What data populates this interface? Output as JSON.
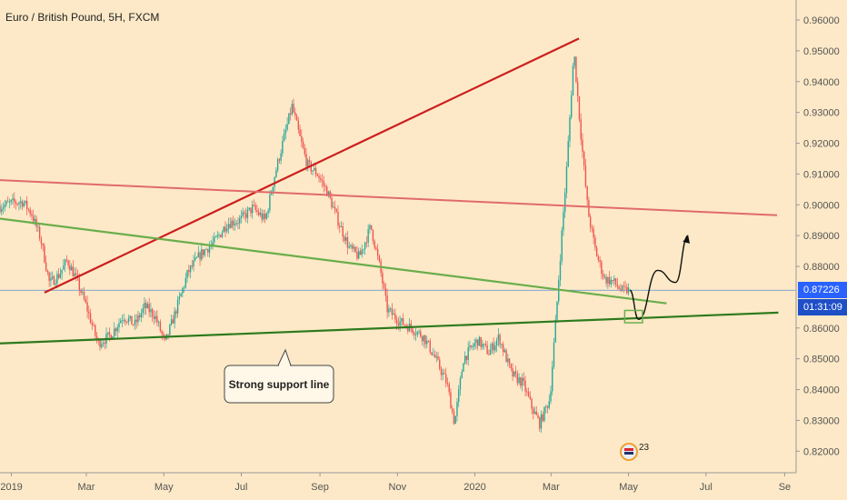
{
  "header": {
    "symbol": "Euro / British Pound, 5H, FXCM"
  },
  "price_axis": {
    "ticks": [
      "0.96000",
      "0.95000",
      "0.94000",
      "0.93000",
      "0.92000",
      "0.91000",
      "0.90000",
      "0.89000",
      "0.88000",
      "0.86000",
      "0.85000",
      "0.84000",
      "0.83000",
      "0.82000"
    ],
    "current_price": "0.87226",
    "countdown": "01:31:09",
    "price_tag_color": "#2962ff",
    "countdown_tag_color": "#1e4fc7"
  },
  "time_axis": {
    "ticks": [
      "2019",
      "Mar",
      "May",
      "Jul",
      "Sep",
      "Nov",
      "2020",
      "Mar",
      "May",
      "Jul",
      "Se"
    ]
  },
  "annotation": {
    "text": "Strong support line"
  },
  "badge": {
    "count": "23"
  },
  "chart_data": {
    "type": "candlestick",
    "title": "Euro / British Pound, 5H, FXCM",
    "xlabel": "",
    "ylabel": "",
    "ylim": [
      0.813,
      0.9665
    ],
    "xlim": [
      "2018-12-23",
      "2020-09-10"
    ],
    "x_tick_labels": [
      "2019",
      "Mar",
      "May",
      "Jul",
      "Sep",
      "Nov",
      "2020",
      "Mar",
      "May",
      "Jul",
      "Se"
    ],
    "y_tick_labels": [
      "0.96000",
      "0.95000",
      "0.94000",
      "0.93000",
      "0.92000",
      "0.91000",
      "0.90000",
      "0.89000",
      "0.88000",
      "0.86000",
      "0.85000",
      "0.84000",
      "0.83000",
      "0.82000"
    ],
    "current_price": 0.87226,
    "grid": false,
    "legend": "none",
    "colors": {
      "up": "#26a69a",
      "down": "#ef5350"
    },
    "price_path": [
      [
        "2018-12-23",
        0.8995
      ],
      [
        "2019-01-03",
        0.9007
      ],
      [
        "2019-01-10",
        0.901
      ],
      [
        "2019-01-17",
        0.897
      ],
      [
        "2019-01-24",
        0.889
      ],
      [
        "2019-01-31",
        0.8745
      ],
      [
        "2019-02-07",
        0.877
      ],
      [
        "2019-02-14",
        0.882
      ],
      [
        "2019-02-21",
        0.876
      ],
      [
        "2019-03-01",
        0.867
      ],
      [
        "2019-03-10",
        0.855
      ],
      [
        "2019-03-20",
        0.8575
      ],
      [
        "2019-03-30",
        0.864
      ],
      [
        "2019-04-08",
        0.861
      ],
      [
        "2019-04-16",
        0.867
      ],
      [
        "2019-04-24",
        0.864
      ],
      [
        "2019-05-02",
        0.855
      ],
      [
        "2019-05-10",
        0.865
      ],
      [
        "2019-05-20",
        0.878
      ],
      [
        "2019-05-30",
        0.884
      ],
      [
        "2019-06-10",
        0.888
      ],
      [
        "2019-06-20",
        0.894
      ],
      [
        "2019-06-30",
        0.895
      ],
      [
        "2019-07-10",
        0.899
      ],
      [
        "2019-07-20",
        0.895
      ],
      [
        "2019-07-27",
        0.909
      ],
      [
        "2019-08-05",
        0.924
      ],
      [
        "2019-08-10",
        0.932
      ],
      [
        "2019-08-16",
        0.922
      ],
      [
        "2019-08-22",
        0.913
      ],
      [
        "2019-08-30",
        0.91
      ],
      [
        "2019-09-07",
        0.904
      ],
      [
        "2019-09-15",
        0.895
      ],
      [
        "2019-09-24",
        0.886
      ],
      [
        "2019-10-02",
        0.883
      ],
      [
        "2019-10-11",
        0.893
      ],
      [
        "2019-10-18",
        0.88
      ],
      [
        "2019-10-24",
        0.866
      ],
      [
        "2019-11-03",
        0.862
      ],
      [
        "2019-11-12",
        0.86
      ],
      [
        "2019-11-22",
        0.857
      ],
      [
        "2019-12-01",
        0.85
      ],
      [
        "2019-12-10",
        0.842
      ],
      [
        "2019-12-16",
        0.829
      ],
      [
        "2019-12-23",
        0.85
      ],
      [
        "2020-01-03",
        0.856
      ],
      [
        "2020-01-12",
        0.852
      ],
      [
        "2020-01-20",
        0.857
      ],
      [
        "2020-01-30",
        0.845
      ],
      [
        "2020-02-08",
        0.842
      ],
      [
        "2020-02-15",
        0.834
      ],
      [
        "2020-02-21",
        0.829
      ],
      [
        "2020-02-29",
        0.837
      ],
      [
        "2020-03-05",
        0.864
      ],
      [
        "2020-03-09",
        0.888
      ],
      [
        "2020-03-13",
        0.91
      ],
      [
        "2020-03-19",
        0.95
      ],
      [
        "2020-03-24",
        0.925
      ],
      [
        "2020-03-30",
        0.898
      ],
      [
        "2020-04-05",
        0.885
      ],
      [
        "2020-04-12",
        0.876
      ],
      [
        "2020-04-19",
        0.875
      ],
      [
        "2020-04-26",
        0.872
      ],
      [
        "2020-05-02",
        0.8723
      ]
    ],
    "projection": [
      [
        "2020-05-02",
        0.8723
      ],
      [
        "2020-05-09",
        0.8628
      ],
      [
        "2020-05-24",
        0.8787
      ],
      [
        "2020-06-07",
        0.8748
      ],
      [
        "2020-06-17",
        0.89
      ]
    ],
    "trendlines": [
      {
        "color": "#cc1f1f",
        "points": [
          [
            "2019-01-27",
            0.8715
          ],
          [
            "2020-03-23",
            0.954
          ]
        ]
      },
      {
        "color": "#e06b6b",
        "points": [
          [
            "2018-12-23",
            0.908
          ],
          [
            "2020-08-26",
            0.8966
          ]
        ]
      },
      {
        "color": "#6aad4b",
        "points": [
          [
            "2018-12-23",
            0.8955
          ],
          [
            "2020-05-31",
            0.868
          ]
        ]
      },
      {
        "color": "#2d7a1d",
        "points": [
          [
            "2018-12-23",
            0.855
          ],
          [
            "2020-08-27",
            0.865
          ]
        ]
      }
    ],
    "target_box": {
      "color": "#6ab04c",
      "date_range": [
        "2020-04-28",
        "2020-05-12"
      ],
      "price_range": [
        0.8617,
        0.8657
      ]
    }
  }
}
